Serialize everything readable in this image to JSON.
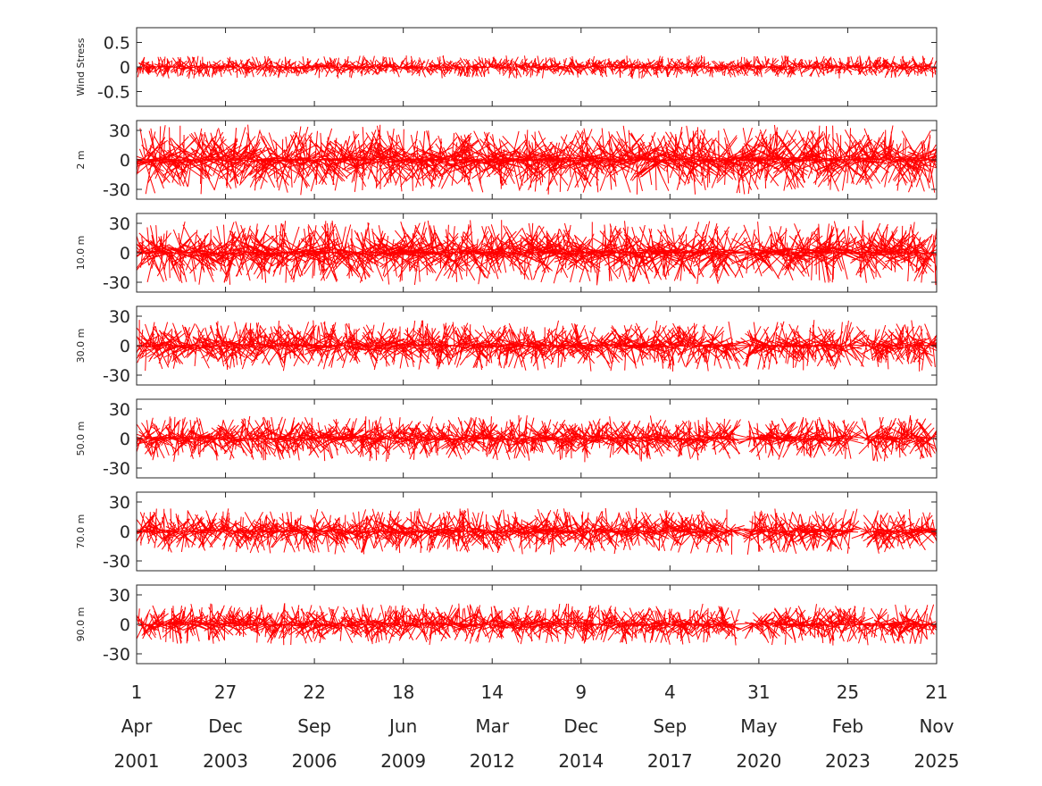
{
  "chart_data": {
    "type": "stick-vector-timeseries",
    "color": "#ff0000",
    "x_ticks": [
      {
        "day": "1",
        "month": "Apr",
        "year": "2001"
      },
      {
        "day": "27",
        "month": "Dec",
        "year": "2003"
      },
      {
        "day": "22",
        "month": "Sep",
        "year": "2006"
      },
      {
        "day": "18",
        "month": "Jun",
        "year": "2009"
      },
      {
        "day": "14",
        "month": "Mar",
        "year": "2012"
      },
      {
        "day": "9",
        "month": "Dec",
        "year": "2014"
      },
      {
        "day": "4",
        "month": "Sep",
        "year": "2017"
      },
      {
        "day": "31",
        "month": "May",
        "year": "2020"
      },
      {
        "day": "25",
        "month": "Feb",
        "year": "2023"
      },
      {
        "day": "21",
        "month": "Nov",
        "year": "2025"
      }
    ],
    "xlim": [
      "2001-04-01",
      "2025-11-21"
    ],
    "panels": [
      {
        "ylabel": "Wind Stress",
        "ylim": [
          -0.8,
          0.8
        ],
        "yticks": [
          0.5,
          0,
          -0.5
        ],
        "ytick_labels": [
          "0.5",
          "0",
          "-0.5"
        ],
        "amplitude": 0.2,
        "gaps": []
      },
      {
        "ylabel": "2 m",
        "ylim": [
          -40,
          40
        ],
        "yticks": [
          30,
          0,
          -30
        ],
        "ytick_labels": [
          "30",
          "0",
          "-30"
        ],
        "amplitude": 30,
        "gaps": []
      },
      {
        "ylabel": "10.0 m",
        "ylim": [
          -40,
          40
        ],
        "yticks": [
          30,
          0,
          -30
        ],
        "ytick_labels": [
          "30",
          "0",
          "-30"
        ],
        "amplitude": 28,
        "gaps": [
          [
            "2019-09-01",
            "2020-01-15"
          ],
          [
            "2023-04-15",
            "2023-06-15"
          ]
        ]
      },
      {
        "ylabel": "30.0 m",
        "ylim": [
          -40,
          40
        ],
        "yticks": [
          30,
          0,
          -30
        ],
        "ytick_labels": [
          "30",
          "0",
          "-30"
        ],
        "amplitude": 22,
        "gaps": [
          [
            "2019-09-01",
            "2020-02-15"
          ],
          [
            "2023-04-15",
            "2023-09-01"
          ]
        ]
      },
      {
        "ylabel": "50.0 m",
        "ylim": [
          -40,
          40
        ],
        "yticks": [
          30,
          0,
          -30
        ],
        "ytick_labels": [
          "30",
          "0",
          "-30"
        ],
        "amplitude": 20,
        "gaps": [
          [
            "2019-09-01",
            "2020-02-15"
          ],
          [
            "2023-04-15",
            "2023-09-01"
          ]
        ]
      },
      {
        "ylabel": "70.0 m",
        "ylim": [
          -40,
          40
        ],
        "yticks": [
          30,
          0,
          -30
        ],
        "ytick_labels": [
          "30",
          "0",
          "-30"
        ],
        "amplitude": 20,
        "gaps": [
          [
            "2019-09-01",
            "2020-02-15"
          ],
          [
            "2023-04-15",
            "2023-09-15"
          ]
        ]
      },
      {
        "ylabel": "90.0 m",
        "ylim": [
          -40,
          40
        ],
        "yticks": [
          30,
          0,
          -30
        ],
        "ytick_labels": [
          "30",
          "0",
          "-30"
        ],
        "amplitude": 18,
        "gaps": [
          [
            "2019-09-15",
            "2020-03-01"
          ],
          [
            "2023-09-15",
            "2023-11-15"
          ]
        ]
      }
    ]
  }
}
